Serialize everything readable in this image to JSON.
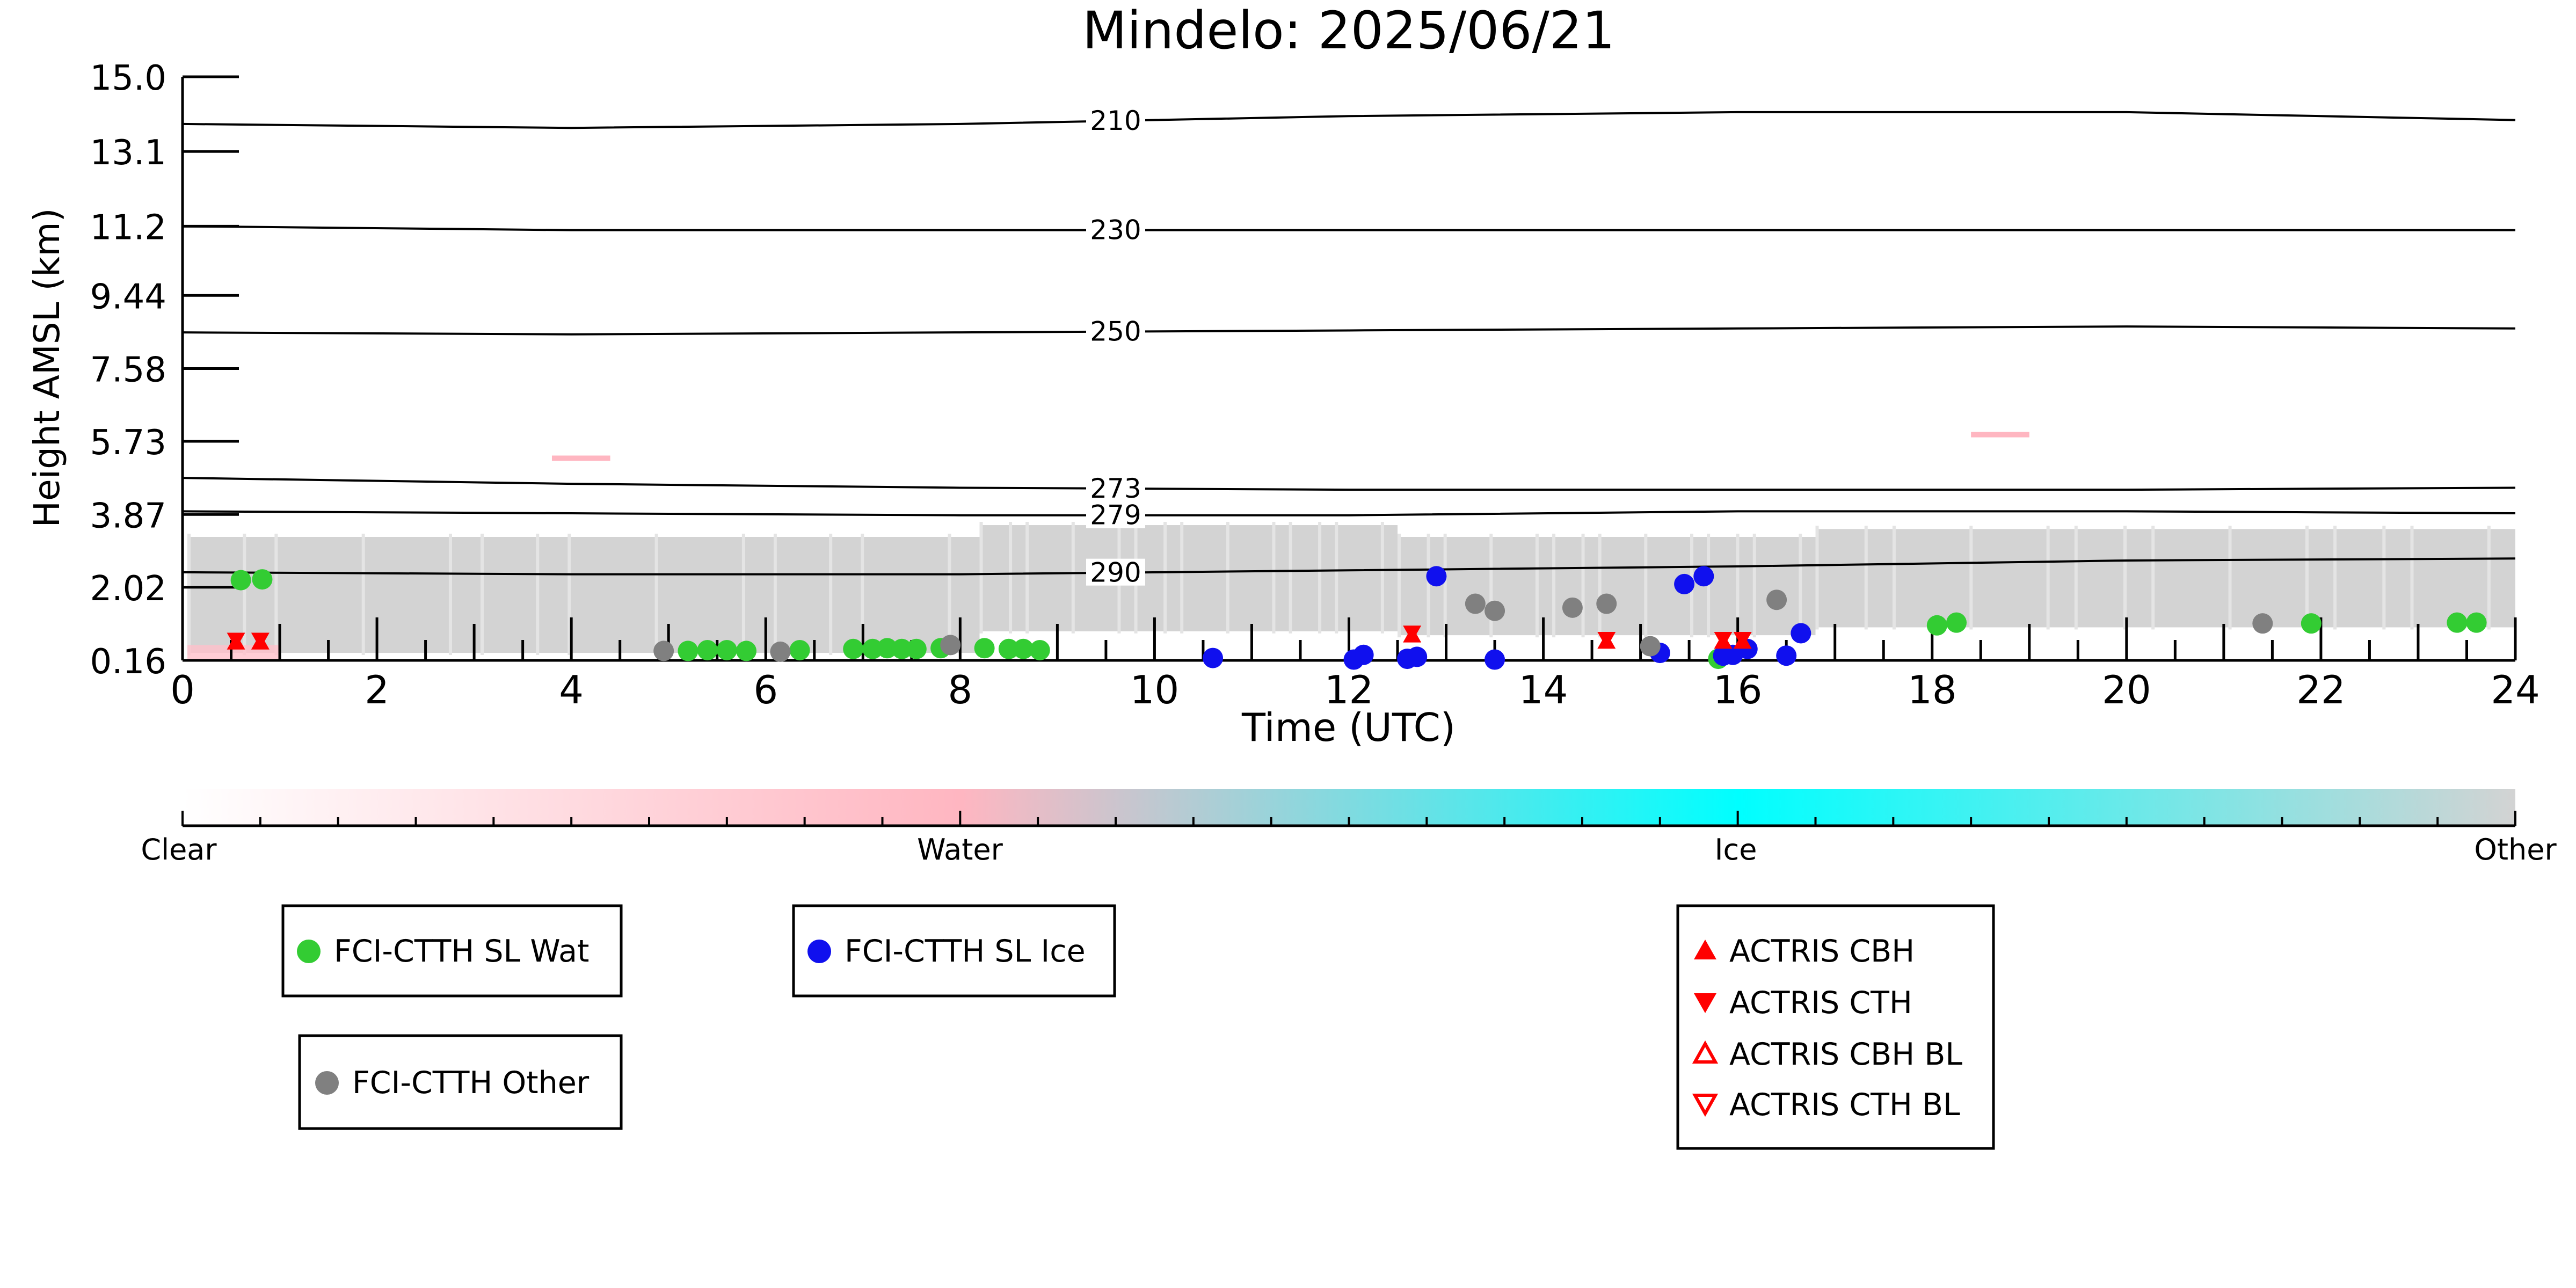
{
  "chart_data": {
    "type": "scatter",
    "title": "Mindelo: 2025/06/21",
    "xlabel": "Time (UTC)",
    "ylabel": "Height AMSL (km)",
    "xlim": [
      0,
      24
    ],
    "ylim": [
      0.16,
      15.0
    ],
    "x_ticks": [
      "0",
      "2",
      "4",
      "6",
      "8",
      "10",
      "12",
      "14",
      "16",
      "18",
      "20",
      "22",
      "24"
    ],
    "y_ticks": [
      "0.16",
      "2.02",
      "3.87",
      "5.73",
      "7.58",
      "9.44",
      "11.2",
      "13.1",
      "15.0"
    ],
    "grid": false,
    "isotherms": [
      {
        "label": "210",
        "y": [
          13.8,
          13.7,
          13.8,
          14.0,
          14.1,
          14.1,
          13.9
        ],
        "label_x": 9.6
      },
      {
        "label": "230",
        "y": [
          11.2,
          11.1,
          11.1,
          11.1,
          11.1,
          11.1,
          11.1
        ],
        "label_x": 9.6
      },
      {
        "label": "250",
        "y": [
          8.5,
          8.45,
          8.5,
          8.55,
          8.6,
          8.65,
          8.6
        ],
        "label_x": 9.6
      },
      {
        "label": "273",
        "y": [
          4.8,
          4.65,
          4.55,
          4.5,
          4.5,
          4.5,
          4.55
        ],
        "label_x": 9.6
      },
      {
        "label": "279",
        "y": [
          3.95,
          3.9,
          3.85,
          3.85,
          3.95,
          3.95,
          3.9
        ],
        "label_x": 9.6
      },
      {
        "label": "290",
        "y": [
          2.4,
          2.35,
          2.35,
          2.45,
          2.55,
          2.7,
          2.75
        ],
        "label_x": 9.6
      }
    ],
    "isotherm_x": [
      0,
      4,
      8,
      12,
      16,
      20,
      24
    ],
    "classification_band": {
      "segments": [
        {
          "x0": 0.05,
          "x1": 8.2,
          "top": 3.3,
          "bottom": 0.35
        },
        {
          "x0": 8.2,
          "x1": 12.5,
          "top": 3.6,
          "bottom": 0.9
        },
        {
          "x0": 12.5,
          "x1": 16.8,
          "top": 3.3,
          "bottom": 0.8
        },
        {
          "x0": 16.8,
          "x1": 24,
          "top": 3.5,
          "bottom": 1.0
        }
      ],
      "pink_bits": [
        {
          "x0": 3.8,
          "x1": 4.4,
          "y": 5.3
        },
        {
          "x0": 18.4,
          "x1": 19.0,
          "y": 5.9
        }
      ]
    },
    "series": [
      {
        "name": "FCI-CTTH SL Wat",
        "color": "#33cc33",
        "marker": "circle",
        "points": [
          [
            0.6,
            2.2
          ],
          [
            0.82,
            2.22
          ],
          [
            5.2,
            0.4
          ],
          [
            5.4,
            0.42
          ],
          [
            5.6,
            0.42
          ],
          [
            5.8,
            0.4
          ],
          [
            6.35,
            0.42
          ],
          [
            6.9,
            0.45
          ],
          [
            7.1,
            0.45
          ],
          [
            7.25,
            0.47
          ],
          [
            7.4,
            0.45
          ],
          [
            7.55,
            0.45
          ],
          [
            7.8,
            0.47
          ],
          [
            8.25,
            0.47
          ],
          [
            8.5,
            0.45
          ],
          [
            8.65,
            0.45
          ],
          [
            8.82,
            0.42
          ],
          [
            15.8,
            0.2
          ],
          [
            18.05,
            1.05
          ],
          [
            18.25,
            1.12
          ],
          [
            21.9,
            1.1
          ],
          [
            23.4,
            1.12
          ],
          [
            23.6,
            1.12
          ]
        ]
      },
      {
        "name": "FCI-CTTH SL Ice",
        "color": "#1010ee",
        "marker": "circle",
        "points": [
          [
            10.6,
            0.22
          ],
          [
            12.05,
            0.18
          ],
          [
            12.15,
            0.3
          ],
          [
            12.6,
            0.2
          ],
          [
            12.7,
            0.25
          ],
          [
            12.9,
            2.3
          ],
          [
            13.5,
            0.18
          ],
          [
            15.2,
            0.35
          ],
          [
            15.45,
            2.1
          ],
          [
            15.65,
            2.3
          ],
          [
            15.85,
            0.28
          ],
          [
            15.95,
            0.3
          ],
          [
            16.1,
            0.45
          ],
          [
            16.5,
            0.28
          ],
          [
            16.65,
            0.85
          ]
        ]
      },
      {
        "name": "FCI-CTTH Other",
        "color": "#808080",
        "marker": "circle",
        "points": [
          [
            4.95,
            0.4
          ],
          [
            6.15,
            0.38
          ],
          [
            7.9,
            0.55
          ],
          [
            13.3,
            1.6
          ],
          [
            13.5,
            1.42
          ],
          [
            14.3,
            1.5
          ],
          [
            14.65,
            1.6
          ],
          [
            15.1,
            0.52
          ],
          [
            16.4,
            1.7
          ],
          [
            21.4,
            1.1
          ]
        ]
      },
      {
        "name": "ACTRIS CBH",
        "color": "#ff0000",
        "marker": "triangle-up",
        "points": [
          [
            0.55,
            0.6
          ],
          [
            0.8,
            0.6
          ],
          [
            12.65,
            0.78
          ],
          [
            14.65,
            0.62
          ],
          [
            15.85,
            0.62
          ],
          [
            16.05,
            0.62
          ]
        ]
      },
      {
        "name": "ACTRIS CTH",
        "color": "#ff0000",
        "marker": "triangle-down",
        "points": [
          [
            0.55,
            0.7
          ],
          [
            0.8,
            0.7
          ],
          [
            12.65,
            0.88
          ],
          [
            14.65,
            0.72
          ],
          [
            15.85,
            0.72
          ],
          [
            16.05,
            0.72
          ]
        ]
      },
      {
        "name": "ACTRIS CBH BL",
        "color": "#ff0000",
        "marker": "triangle-up-open",
        "points": []
      },
      {
        "name": "ACTRIS CTH BL",
        "color": "#ff0000",
        "marker": "triangle-down-open",
        "points": []
      }
    ],
    "colorbar": {
      "labels": [
        "Clear",
        "Water",
        "Ice",
        "Other"
      ],
      "stops": [
        "#ffffff",
        "#ffb6c1",
        "#00ffff",
        "#d3d3d3"
      ]
    },
    "legends": [
      {
        "entries": [
          "FCI-CTTH SL Wat"
        ]
      },
      {
        "entries": [
          "FCI-CTTH SL Ice"
        ]
      },
      {
        "entries": [
          "FCI-CTTH Other"
        ]
      },
      {
        "entries": [
          "ACTRIS CBH",
          "ACTRIS CTH",
          "ACTRIS CBH BL",
          "ACTRIS CTH BL"
        ]
      }
    ]
  }
}
